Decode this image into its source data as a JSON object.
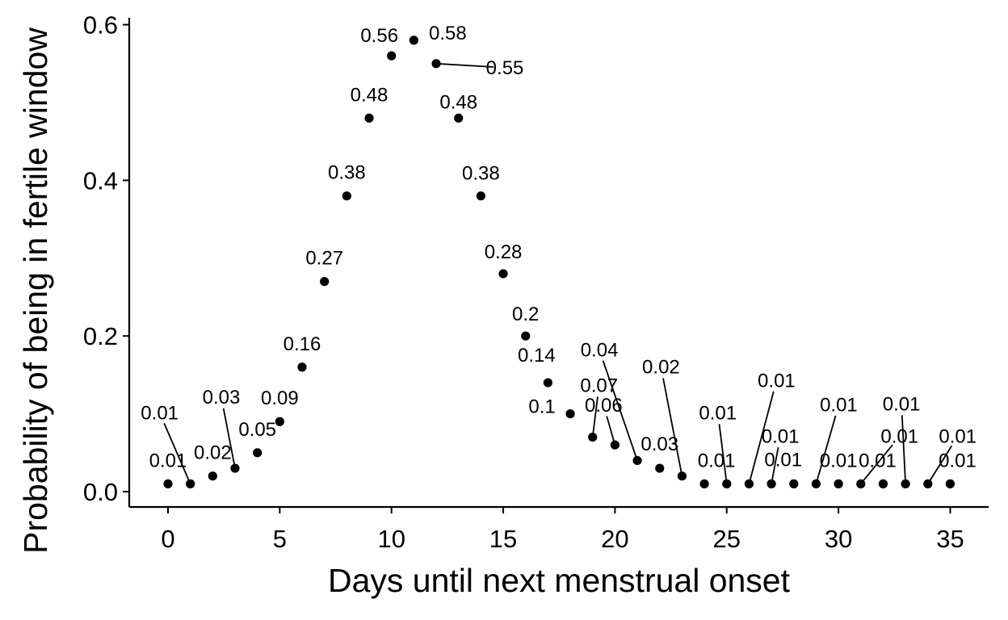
{
  "chart_data": {
    "type": "scatter",
    "xlabel": "Days until next menstrual onset",
    "ylabel": "Probability of being in fertile window",
    "xlim": [
      -1.8,
      36.8
    ],
    "ylim": [
      0,
      0.6
    ],
    "xticks": [
      0,
      5,
      10,
      15,
      20,
      25,
      30,
      35
    ],
    "yticks": [
      0.0,
      0.2,
      0.4,
      0.6
    ],
    "xtick_labels": [
      "0",
      "5",
      "10",
      "15",
      "20",
      "25",
      "30",
      "35"
    ],
    "ytick_labels": [
      "0.0",
      "0.2",
      "0.4",
      "0.6"
    ],
    "grid": false,
    "legend": "none",
    "point_color": "#000000",
    "points": [
      {
        "x": 0,
        "y": 0.01,
        "label": "0.01"
      },
      {
        "x": 1,
        "y": 0.01,
        "label": "0.01"
      },
      {
        "x": 2,
        "y": 0.02,
        "label": "0.02"
      },
      {
        "x": 3,
        "y": 0.03,
        "label": "0.03"
      },
      {
        "x": 4,
        "y": 0.05,
        "label": "0.05"
      },
      {
        "x": 5,
        "y": 0.09,
        "label": "0.09"
      },
      {
        "x": 6,
        "y": 0.16,
        "label": "0.16"
      },
      {
        "x": 7,
        "y": 0.27,
        "label": "0.27"
      },
      {
        "x": 8,
        "y": 0.38,
        "label": "0.38"
      },
      {
        "x": 9,
        "y": 0.48,
        "label": "0.48"
      },
      {
        "x": 10,
        "y": 0.56,
        "label": "0.56"
      },
      {
        "x": 11,
        "y": 0.58,
        "label": "0.58"
      },
      {
        "x": 12,
        "y": 0.55,
        "label": "0.55"
      },
      {
        "x": 13,
        "y": 0.48,
        "label": "0.48"
      },
      {
        "x": 14,
        "y": 0.38,
        "label": "0.38"
      },
      {
        "x": 15,
        "y": 0.28,
        "label": "0.28"
      },
      {
        "x": 16,
        "y": 0.2,
        "label": "0.2"
      },
      {
        "x": 17,
        "y": 0.14,
        "label": "0.14"
      },
      {
        "x": 18,
        "y": 0.1,
        "label": "0.1"
      },
      {
        "x": 19,
        "y": 0.07,
        "label": "0.07"
      },
      {
        "x": 20,
        "y": 0.06,
        "label": "0.06"
      },
      {
        "x": 21,
        "y": 0.04,
        "label": "0.04"
      },
      {
        "x": 22,
        "y": 0.03,
        "label": "0.03"
      },
      {
        "x": 23,
        "y": 0.02,
        "label": "0.02"
      },
      {
        "x": 24,
        "y": 0.01,
        "label": "0.01"
      },
      {
        "x": 25,
        "y": 0.01,
        "label": "0.01"
      },
      {
        "x": 26,
        "y": 0.01,
        "label": "0.01"
      },
      {
        "x": 27,
        "y": 0.01,
        "label": "0.01"
      },
      {
        "x": 28,
        "y": 0.01,
        "label": "0.01"
      },
      {
        "x": 29,
        "y": 0.01,
        "label": "0.01"
      },
      {
        "x": 30,
        "y": 0.01,
        "label": "0.01"
      },
      {
        "x": 31,
        "y": 0.01,
        "label": "0.01"
      },
      {
        "x": 32,
        "y": 0.01,
        "label": "0.01"
      },
      {
        "x": 33,
        "y": 0.01,
        "label": "0.01"
      },
      {
        "x": 34,
        "y": 0.01,
        "label": "0.01"
      },
      {
        "x": 35,
        "y": 0.01,
        "label": "0.01"
      }
    ]
  }
}
